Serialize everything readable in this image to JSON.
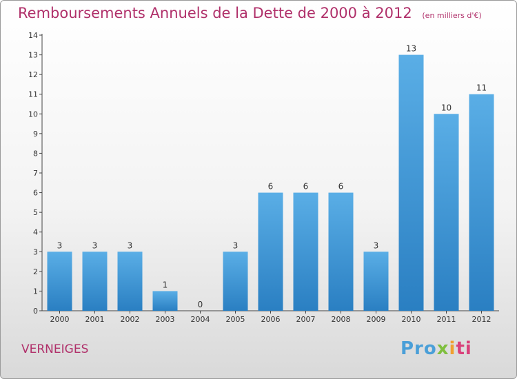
{
  "header": {
    "title": "Remboursements Annuels de la Dette de 2000 à 2012",
    "unit": "(en milliers d'€)"
  },
  "footer": {
    "city": "VERNEIGES",
    "logo_parts": [
      "Pro",
      "x",
      "i",
      "ti"
    ]
  },
  "colors": {
    "title": "#b0306a",
    "bar_top": "#5aaee6",
    "bar_bottom": "#2a7fc2"
  },
  "chart_data": {
    "type": "bar",
    "categories": [
      "2000",
      "2001",
      "2002",
      "2003",
      "2004",
      "2005",
      "2006",
      "2007",
      "2008",
      "2009",
      "2010",
      "2011",
      "2012"
    ],
    "values": [
      3,
      3,
      3,
      1,
      0,
      3,
      6,
      6,
      6,
      3,
      13,
      10,
      11
    ],
    "ylim": [
      0,
      14
    ],
    "yticks": [
      0,
      1,
      2,
      3,
      4,
      5,
      6,
      7,
      8,
      9,
      10,
      11,
      12,
      13,
      14
    ],
    "grid": false,
    "data_labels": true
  }
}
